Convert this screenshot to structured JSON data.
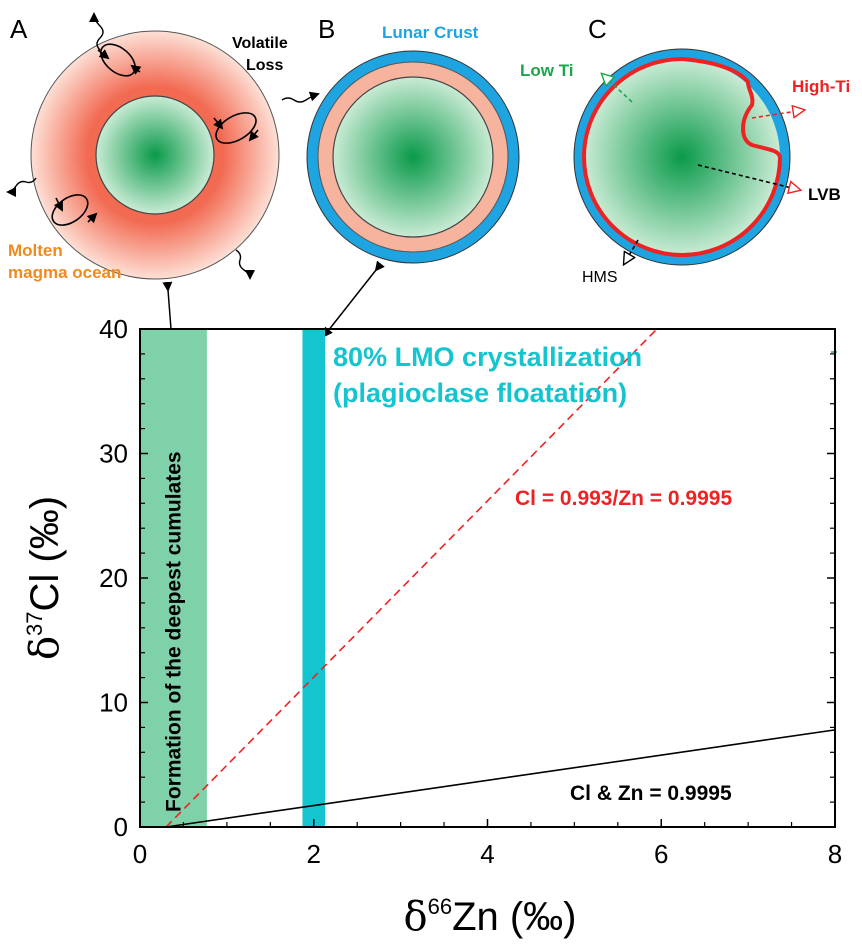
{
  "panels": {
    "a": {
      "letter": "A",
      "volatile_line1": "Volatile",
      "volatile_line2": "Loss",
      "molten_line1": "Molten",
      "molten_line2": "magma ocean"
    },
    "b": {
      "letter": "B",
      "crust_label": "Lunar Crust"
    },
    "c": {
      "letter": "C",
      "low_ti": "Low Ti",
      "high_ti": "High-Ti",
      "lvb": "LVB",
      "hms": "HMS"
    }
  },
  "colors": {
    "crust_blue": "#1ea4e0",
    "magma_orange": "#f08a1e",
    "core_green": "#0a9a4a",
    "band_green": "#7fd1aa",
    "band_cyan": "#14c4ce",
    "red_line": "#ee2222",
    "low_ti_green": "#1aa64a"
  },
  "chart_data": {
    "type": "line",
    "x_axis": {
      "label_symbol": "δ",
      "label_superscript": "66",
      "label_main": "Zn (‰)",
      "range": [
        0,
        8
      ],
      "ticks": [
        0,
        2,
        4,
        6,
        8
      ]
    },
    "y_axis": {
      "label_symbol": "δ",
      "label_superscript": "37",
      "label_main": "Cl (‰)",
      "range": [
        0,
        40
      ],
      "ticks": [
        0,
        10,
        20,
        30,
        40
      ]
    },
    "bands": [
      {
        "x_from": 0,
        "x_to": 0.77,
        "color": "#7fd1aa",
        "label": "Formation of the deepest cumulates",
        "label_orientation": "vertical"
      },
      {
        "x_from": 1.87,
        "x_to": 2.13,
        "color": "#14c4ce",
        "label_line1": "80% LMO crystallization",
        "label_line2": "(plagioclase floatation)"
      }
    ],
    "series": [
      {
        "name": "Cl = 0.993/Zn = 0.9995",
        "style": "dashed",
        "color": "#ee2222",
        "x": [
          0.3,
          5.95
        ],
        "y": [
          0,
          40
        ]
      },
      {
        "name": "Cl & Zn = 0.9995",
        "style": "solid",
        "color": "#000000",
        "x": [
          0.3,
          8
        ],
        "y": [
          0,
          7.8
        ]
      }
    ],
    "grid": false
  }
}
